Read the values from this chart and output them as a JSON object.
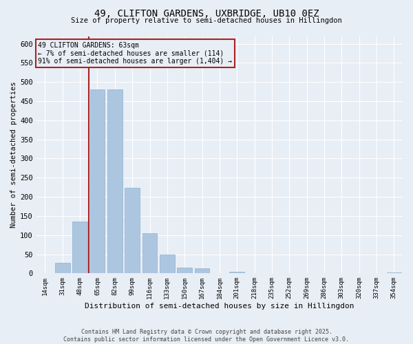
{
  "title1": "49, CLIFTON GARDENS, UXBRIDGE, UB10 0EZ",
  "title2": "Size of property relative to semi-detached houses in Hillingdon",
  "xlabel": "Distribution of semi-detached houses by size in Hillingdon",
  "ylabel": "Number of semi-detached properties",
  "categories": [
    "14sqm",
    "31sqm",
    "48sqm",
    "65sqm",
    "82sqm",
    "99sqm",
    "116sqm",
    "133sqm",
    "150sqm",
    "167sqm",
    "184sqm",
    "201sqm",
    "218sqm",
    "235sqm",
    "252sqm",
    "269sqm",
    "286sqm",
    "303sqm",
    "320sqm",
    "337sqm",
    "354sqm"
  ],
  "values": [
    0,
    28,
    135,
    480,
    480,
    223,
    105,
    50,
    15,
    14,
    0,
    5,
    1,
    1,
    0,
    0,
    0,
    0,
    0,
    0,
    2
  ],
  "bar_color": "#adc6e0",
  "bar_edge_color": "#8ab0d0",
  "vline_index": 2.5,
  "vline_color": "#aa2222",
  "annotation_text": "49 CLIFTON GARDENS: 63sqm\n← 7% of semi-detached houses are smaller (114)\n91% of semi-detached houses are larger (1,404) →",
  "annotation_box_color": "#aa2222",
  "ylim": [
    0,
    620
  ],
  "yticks": [
    0,
    50,
    100,
    150,
    200,
    250,
    300,
    350,
    400,
    450,
    500,
    550,
    600
  ],
  "bg_color": "#e8eef5",
  "grid_color": "#ffffff",
  "footer": "Contains HM Land Registry data © Crown copyright and database right 2025.\nContains public sector information licensed under the Open Government Licence v3.0."
}
